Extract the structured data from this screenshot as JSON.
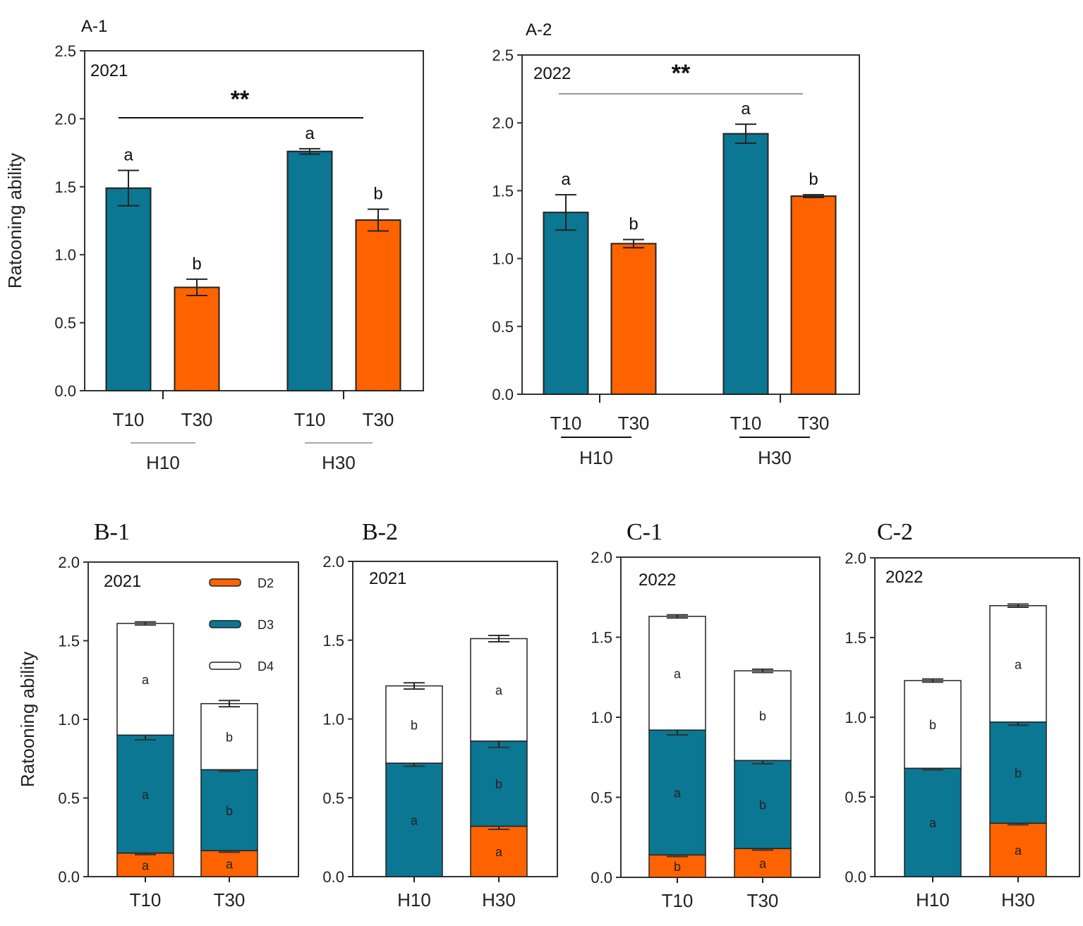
{
  "colors": {
    "teal": "#0b7792",
    "orange": "#fe6300",
    "white": "#ffffff",
    "axis": "#333333"
  },
  "chart_data": [
    {
      "id": "A-1",
      "type": "bar",
      "title": "A-1",
      "year": "2021",
      "ylabel": "Ratooning ability",
      "ylim": [
        0,
        2.5
      ],
      "yticks": [
        "0.0",
        "0.5",
        "1.0",
        "1.5",
        "2.0",
        "2.5"
      ],
      "categories": [
        "T10",
        "T30",
        "T10",
        "T30"
      ],
      "groups": [
        "H10",
        "H30"
      ],
      "values": [
        1.49,
        0.76,
        1.76,
        1.255
      ],
      "errors": [
        0.13,
        0.06,
        0.02,
        0.08
      ],
      "letters": [
        "a",
        "b",
        "a",
        "b"
      ],
      "bar_colors": [
        "teal",
        "orange",
        "teal",
        "orange"
      ],
      "significance": "**"
    },
    {
      "id": "A-2",
      "type": "bar",
      "title": "A-2",
      "year": "2022",
      "ylabel": "",
      "ylim": [
        0,
        2.5
      ],
      "yticks": [
        "0.0",
        "0.5",
        "1.0",
        "1.5",
        "2.0",
        "2.5"
      ],
      "categories": [
        "T10",
        "T30",
        "T10",
        "T30"
      ],
      "groups": [
        "H10",
        "H30"
      ],
      "values": [
        1.34,
        1.11,
        1.92,
        1.46
      ],
      "errors": [
        0.13,
        0.03,
        0.07,
        0.01
      ],
      "letters": [
        "a",
        "b",
        "a",
        "b"
      ],
      "bar_colors": [
        "teal",
        "orange",
        "teal",
        "orange"
      ],
      "significance": "**"
    },
    {
      "id": "B-1",
      "type": "bar",
      "stacked": true,
      "title": "B-1",
      "year": "2021",
      "ylabel": "Ratooning ability",
      "ylim": [
        0,
        2.0
      ],
      "yticks": [
        "0.0",
        "0.5",
        "1.0",
        "1.5",
        "2.0"
      ],
      "categories": [
        "T10",
        "T30"
      ],
      "legend": [
        "D2",
        "D3",
        "D4"
      ],
      "legend_position": "top-right",
      "series": [
        {
          "name": "D2",
          "color": "orange",
          "values": [
            0.15,
            0.165
          ],
          "errors": [
            0.01,
            0.01
          ],
          "letters": [
            "a",
            "a"
          ]
        },
        {
          "name": "D3",
          "color": "teal",
          "values": [
            0.75,
            0.515
          ],
          "errors": [
            0.03,
            0.01
          ],
          "letters": [
            "a",
            "b"
          ]
        },
        {
          "name": "D4",
          "color": "white",
          "values": [
            0.71,
            0.42
          ],
          "errors": [
            0.01,
            0.02
          ],
          "letters": [
            "a",
            "b"
          ]
        }
      ]
    },
    {
      "id": "B-2",
      "type": "bar",
      "stacked": true,
      "title": "B-2",
      "year": "2021",
      "ylabel": "",
      "ylim": [
        0,
        2.0
      ],
      "yticks": [
        "0.0",
        "0.5",
        "1.0",
        "1.5",
        "2.0"
      ],
      "categories": [
        "H10",
        "H30"
      ],
      "series": [
        {
          "name": "D2",
          "color": "orange",
          "values": [
            0,
            0.32
          ],
          "errors": [
            0,
            0.02
          ],
          "letters": [
            "",
            "a"
          ]
        },
        {
          "name": "D3",
          "color": "teal",
          "values": [
            0.72,
            0.54
          ],
          "errors": [
            0.02,
            0.04
          ],
          "letters": [
            "a",
            "b"
          ]
        },
        {
          "name": "D4",
          "color": "white",
          "values": [
            0.49,
            0.65
          ],
          "errors": [
            0.02,
            0.02
          ],
          "letters": [
            "b",
            "a"
          ]
        }
      ]
    },
    {
      "id": "C-1",
      "type": "bar",
      "stacked": true,
      "title": "C-1",
      "year": "2022",
      "ylabel": "",
      "ylim": [
        0,
        2.0
      ],
      "yticks": [
        "0.0",
        "0.5",
        "1.0",
        "1.5",
        "2.0"
      ],
      "categories": [
        "T10",
        "T30"
      ],
      "series": [
        {
          "name": "D2",
          "color": "orange",
          "values": [
            0.14,
            0.18
          ],
          "errors": [
            0.01,
            0.01
          ],
          "letters": [
            "b",
            "a"
          ]
        },
        {
          "name": "D3",
          "color": "teal",
          "values": [
            0.78,
            0.55
          ],
          "errors": [
            0.03,
            0.02
          ],
          "letters": [
            "a",
            "b"
          ]
        },
        {
          "name": "D4",
          "color": "white",
          "values": [
            0.71,
            0.56
          ],
          "errors": [
            0.01,
            0.01
          ],
          "letters": [
            "a",
            "b"
          ]
        }
      ]
    },
    {
      "id": "C-2",
      "type": "bar",
      "stacked": true,
      "title": "C-2",
      "year": "2022",
      "ylabel": "",
      "ylim": [
        0,
        2.0
      ],
      "yticks": [
        "0.0",
        "0.5",
        "1.0",
        "1.5",
        "2.0"
      ],
      "categories": [
        "H10",
        "H30"
      ],
      "series": [
        {
          "name": "D2",
          "color": "orange",
          "values": [
            0,
            0.335
          ],
          "errors": [
            0,
            0.01
          ],
          "letters": [
            "",
            "a"
          ]
        },
        {
          "name": "D3",
          "color": "teal",
          "values": [
            0.68,
            0.635
          ],
          "errors": [
            0.01,
            0.02
          ],
          "letters": [
            "a",
            "b"
          ]
        },
        {
          "name": "D4",
          "color": "white",
          "values": [
            0.55,
            0.73
          ],
          "errors": [
            0.01,
            0.01
          ],
          "letters": [
            "b",
            "a"
          ]
        }
      ]
    }
  ]
}
